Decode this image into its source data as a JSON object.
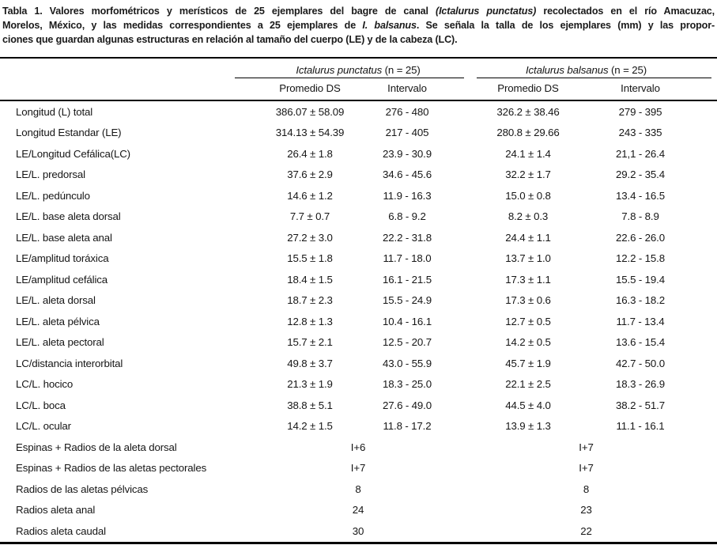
{
  "caption": {
    "line1_pre": "Tabla 1. Valores morfométricos y merísticos de 25 ejemplares del bagre de canal ",
    "line1_italic": "(Ictalurus punctatus)",
    "line1_post": " recolectados en el río Amacuzac,",
    "line2_pre": "Morelos, México, y las medidas correspondientes a 25 ejemplares de ",
    "line2_italic": "I. balsanus",
    "line2_post": ". Se señala la talla de los ejemplares (mm) y las propor-",
    "line3": "ciones que guardan algunas estructuras en relación al tamaño del cuerpo (LE) y de la cabeza (LC)."
  },
  "table": {
    "groups": [
      {
        "name": "Ictalurus punctatus",
        "n": " (n = 25)"
      },
      {
        "name": "Ictalurus balsanus",
        "n": " (n = 25)"
      }
    ],
    "subheaders": {
      "promedio_a": "Promedio DS",
      "intervalo_a": "Intervalo",
      "promedio_b": "Promedio DS",
      "intervalo_b": "Intervalo"
    },
    "morphometric_rows": [
      {
        "label": "Longitud (L) total",
        "pp": "386.07 ± 58.09",
        "pi": "276 - 480",
        "bp": "326.2 ± 38.46",
        "bi": "279 - 395"
      },
      {
        "label": "Longitud Estandar (LE)",
        "pp": "314.13 ± 54.39",
        "pi": "217 - 405",
        "bp": "280.8 ± 29.66",
        "bi": "243 - 335"
      },
      {
        "label": "LE/Longitud Cefálica(LC)",
        "pp": "26.4 ± 1.8",
        "pi": "23.9 - 30.9",
        "bp": "24.1 ± 1.4",
        "bi": "21,1 - 26.4"
      },
      {
        "label": "LE/L. predorsal",
        "pp": "37.6 ± 2.9",
        "pi": "34.6 - 45.6",
        "bp": "32.2 ± 1.7",
        "bi": "29.2 - 35.4"
      },
      {
        "label": "LE/L. pedúnculo",
        "pp": "14.6 ± 1.2",
        "pi": "11.9 - 16.3",
        "bp": "15.0 ± 0.8",
        "bi": "13.4 - 16.5"
      },
      {
        "label": "LE/L. base aleta dorsal",
        "pp": "7.7 ± 0.7",
        "pi": "6.8 - 9.2",
        "bp": "8.2 ± 0.3",
        "bi": "7.8 - 8.9"
      },
      {
        "label": "LE/L. base aleta anal",
        "pp": "27.2 ± 3.0",
        "pi": "22.2 - 31.8",
        "bp": "24.4 ± 1.1",
        "bi": "22.6 - 26.0"
      },
      {
        "label": "LE/amplitud toráxica",
        "pp": "15.5 ± 1.8",
        "pi": "11.7 - 18.0",
        "bp": "13.7 ± 1.0",
        "bi": "12.2 - 15.8"
      },
      {
        "label": "LE/amplitud cefálica",
        "pp": "18.4 ± 1.5",
        "pi": "16.1 - 21.5",
        "bp": "17.3 ± 1.1",
        "bi": "15.5 - 19.4"
      },
      {
        "label": "LE/L. aleta dorsal",
        "pp": "18.7 ± 2.3",
        "pi": "15.5 - 24.9",
        "bp": "17.3 ± 0.6",
        "bi": "16.3 - 18.2"
      },
      {
        "label": "LE/L. aleta pélvica",
        "pp": "12.8 ± 1.3",
        "pi": "10.4 - 16.1",
        "bp": "12.7 ± 0.5",
        "bi": "11.7 - 13.4"
      },
      {
        "label": "LE/L. aleta pectoral",
        "pp": "15.7 ± 2.1",
        "pi": "12.5 - 20.7",
        "bp": "14.2 ± 0.5",
        "bi": "13.6 - 15.4"
      },
      {
        "label": "LC/distancia interorbital",
        "pp": "49.8 ± 3.7",
        "pi": "43.0 - 55.9",
        "bp": "45.7 ± 1.9",
        "bi": "42.7 - 50.0"
      },
      {
        "label": "LC/L. hocico",
        "pp": "21.3 ± 1.9",
        "pi": "18.3 - 25.0",
        "bp": "22.1 ± 2.5",
        "bi": "18.3 - 26.9"
      },
      {
        "label": "LC/L. boca",
        "pp": "38.8 ± 5.1",
        "pi": "27.6 - 49.0",
        "bp": "44.5 ± 4.0",
        "bi": "38.2 - 51.7"
      },
      {
        "label": "LC/L. ocular",
        "pp": "14.2 ± 1.5",
        "pi": "11.8 - 17.2",
        "bp": "13.9 ± 1.3",
        "bi": "11.1 - 16.1"
      }
    ],
    "meristic_rows": [
      {
        "label": "Espinas + Radios de la aleta dorsal",
        "p": "I+6",
        "b": "I+7"
      },
      {
        "label": "Espinas + Radios de las aletas pectorales",
        "p": "I+7",
        "b": "I+7"
      },
      {
        "label": "Radios de las aletas pélvicas",
        "p": "8",
        "b": "8"
      },
      {
        "label": "Radios aleta anal",
        "p": "24",
        "b": "23"
      },
      {
        "label": "Radios aleta caudal",
        "p": "30",
        "b": "22"
      }
    ]
  }
}
